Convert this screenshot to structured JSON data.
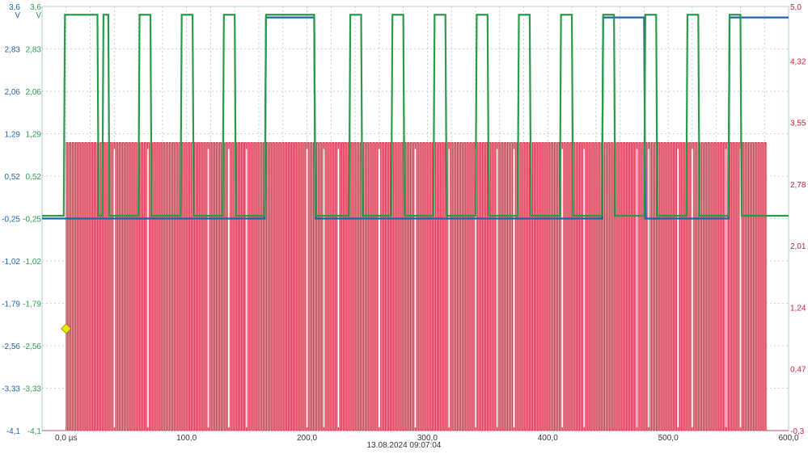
{
  "timestamp": "13.08.2024 09:07:04",
  "colors": {
    "blue": "#1f63a8",
    "green": "#2a9a4a",
    "red": "#cc1f3a",
    "red_fill": "#f49aa8",
    "trigger": "#f2e600"
  },
  "chart_data": {
    "type": "line",
    "title": "",
    "grid": true,
    "xlabel": "",
    "x_unit": "µs",
    "xlim": [
      -20,
      600
    ],
    "x_ticks": [
      "0,0 µs",
      "100,0",
      "200,0",
      "300,0",
      "400,0",
      "500,0",
      "600,0"
    ],
    "axes": {
      "left_outer": {
        "color": "#1f63a8",
        "unit": "V",
        "range": [
          -4.1,
          3.6
        ],
        "ticks": [
          "3,6",
          "2,83",
          "2,06",
          "1,29",
          "0,52",
          "-0,25",
          "-1,02",
          "-1,79",
          "-2,56",
          "-3,33",
          "-4,1"
        ]
      },
      "left_inner": {
        "color": "#2a9a4a",
        "unit": "V",
        "range": [
          -4.1,
          3.6
        ],
        "ticks": [
          "3,6",
          "2,83",
          "2,06",
          "1,29",
          "0,52",
          "-0,25",
          "-1,02",
          "-1,79",
          "-2,56",
          "-3,33",
          "-4,1"
        ]
      },
      "right": {
        "color": "#cc1f3a",
        "unit": "V",
        "range": [
          -0.3,
          5.0
        ],
        "ticks": [
          "5,0",
          "4,32",
          "3,55",
          "2,78",
          "2,01",
          "1,24",
          "0,47",
          "-0,3"
        ]
      }
    },
    "series": [
      {
        "axis": "left_outer",
        "color": "#1f63a8",
        "low": -0.25,
        "high": 3.4,
        "points": [
          [
            -20,
            -0.25
          ],
          [
            165,
            -0.25
          ],
          [
            166,
            3.4
          ],
          [
            206,
            3.4
          ],
          [
            207,
            -0.25
          ],
          [
            445,
            -0.25
          ],
          [
            446,
            3.4
          ],
          [
            480,
            3.4
          ],
          [
            481,
            -0.25
          ],
          [
            550,
            -0.25
          ],
          [
            551,
            3.4
          ],
          [
            600,
            3.4
          ]
        ]
      },
      {
        "axis": "left_inner",
        "color": "#2a9a4a",
        "low": -0.2,
        "high": 3.45,
        "points": [
          [
            -20,
            -0.2
          ],
          [
            -2,
            -0.2
          ],
          [
            -1,
            3.45
          ],
          [
            26,
            3.45
          ],
          [
            27,
            -0.2
          ],
          [
            30,
            -0.2
          ],
          [
            31,
            3.45
          ],
          [
            35,
            3.45
          ],
          [
            36,
            -0.2
          ],
          [
            60,
            -0.2
          ],
          [
            61,
            3.45
          ],
          [
            70,
            3.45
          ],
          [
            71,
            -0.2
          ],
          [
            95,
            -0.2
          ],
          [
            96,
            3.45
          ],
          [
            105,
            3.45
          ],
          [
            106,
            -0.2
          ],
          [
            130,
            -0.2
          ],
          [
            131,
            3.45
          ],
          [
            140,
            3.45
          ],
          [
            141,
            -0.2
          ],
          [
            165,
            -0.2
          ],
          [
            166,
            3.45
          ],
          [
            206,
            3.45
          ],
          [
            207,
            -0.2
          ],
          [
            235,
            -0.2
          ],
          [
            236,
            3.45
          ],
          [
            245,
            3.45
          ],
          [
            246,
            -0.2
          ],
          [
            270,
            -0.2
          ],
          [
            271,
            3.45
          ],
          [
            280,
            3.45
          ],
          [
            281,
            -0.2
          ],
          [
            305,
            -0.2
          ],
          [
            306,
            3.45
          ],
          [
            315,
            3.45
          ],
          [
            316,
            -0.2
          ],
          [
            340,
            -0.2
          ],
          [
            341,
            3.45
          ],
          [
            350,
            3.45
          ],
          [
            351,
            -0.2
          ],
          [
            375,
            -0.2
          ],
          [
            376,
            3.45
          ],
          [
            385,
            3.45
          ],
          [
            386,
            -0.2
          ],
          [
            410,
            -0.2
          ],
          [
            411,
            3.45
          ],
          [
            420,
            3.45
          ],
          [
            421,
            -0.2
          ],
          [
            445,
            -0.2
          ],
          [
            446,
            3.45
          ],
          [
            455,
            3.45
          ],
          [
            456,
            -0.2
          ],
          [
            480,
            -0.2
          ],
          [
            481,
            3.45
          ],
          [
            490,
            3.45
          ],
          [
            491,
            -0.2
          ],
          [
            515,
            -0.2
          ],
          [
            516,
            3.45
          ],
          [
            525,
            3.45
          ],
          [
            526,
            -0.2
          ],
          [
            550,
            -0.2
          ],
          [
            551,
            3.45
          ],
          [
            560,
            3.45
          ],
          [
            561,
            -0.2
          ],
          [
            600,
            -0.2
          ]
        ]
      },
      {
        "axis": "right",
        "color": "#cc1f3a",
        "type": "area",
        "low": -0.3,
        "high": 3.3,
        "start": 0,
        "end": 582,
        "period": 2.6,
        "duty": 0.5
      }
    ],
    "trigger": {
      "x": 0,
      "y": -2.25,
      "axis": "left_outer"
    }
  }
}
